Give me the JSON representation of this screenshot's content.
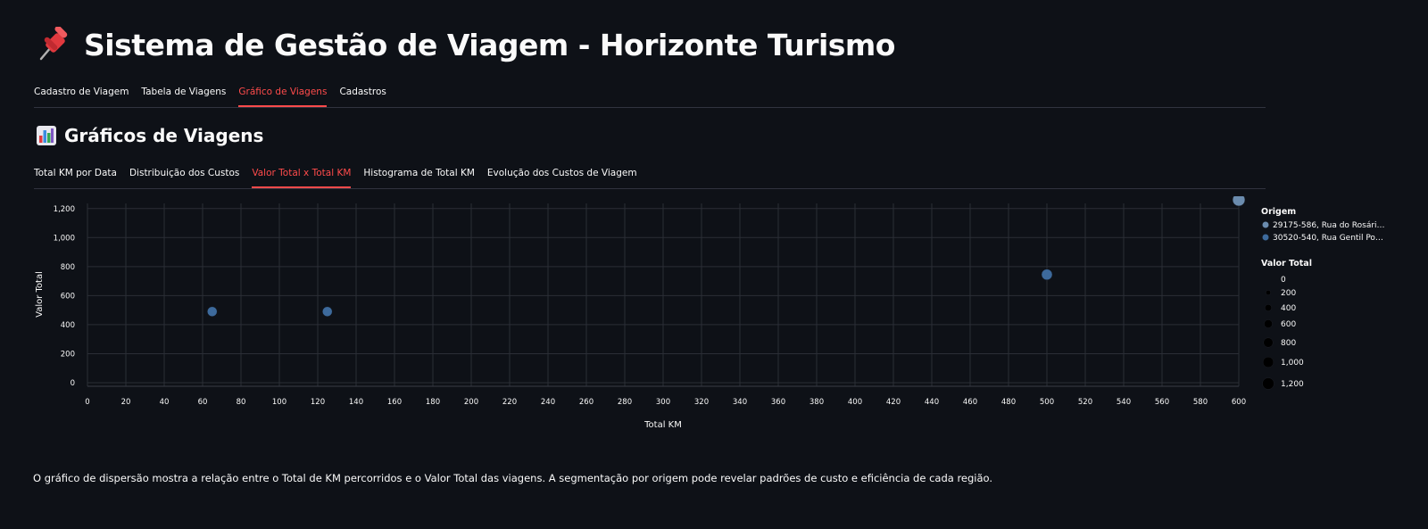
{
  "header": {
    "title_icon": "pushpin-icon",
    "title": "Sistema de Gestão de Viagem - Horizonte Turismo"
  },
  "main_tabs": [
    {
      "label": "Cadastro de Viagem",
      "active": false
    },
    {
      "label": "Tabela de Viagens",
      "active": false
    },
    {
      "label": "Gráfico de Viagens",
      "active": true
    },
    {
      "label": "Cadastros",
      "active": false
    }
  ],
  "section": {
    "icon": "bar-chart-icon",
    "title": "Gráficos de Viagens"
  },
  "chart_tabs": [
    {
      "label": "Total KM por Data",
      "active": false
    },
    {
      "label": "Distribuição dos Custos",
      "active": false
    },
    {
      "label": "Valor Total x Total KM",
      "active": true
    },
    {
      "label": "Histograma de Total KM",
      "active": false
    },
    {
      "label": "Evolução dos Custos de Viagem",
      "active": false
    }
  ],
  "chart_data": {
    "type": "scatter",
    "xlabel": "Total KM",
    "ylabel": "Valor Total",
    "xlim": [
      0,
      600
    ],
    "ylim": [
      0,
      1260
    ],
    "x_ticks": [
      0,
      20,
      40,
      60,
      80,
      100,
      120,
      140,
      160,
      180,
      200,
      220,
      240,
      260,
      280,
      300,
      320,
      340,
      360,
      380,
      400,
      420,
      440,
      460,
      480,
      500,
      520,
      540,
      560,
      580,
      600
    ],
    "y_ticks": [
      0,
      200,
      400,
      600,
      800,
      1000,
      1200
    ],
    "tick_format": [
      "0",
      "200",
      "400",
      "600",
      "800",
      "1,000",
      "1,200"
    ],
    "grid": true,
    "legend_placement": "right",
    "color_legend_title": "Origem",
    "series": [
      {
        "name": "29175-586, Rua do Rosári…",
        "color": "#6b8cae",
        "points": [
          {
            "x": 600,
            "y": 1260
          }
        ]
      },
      {
        "name": "30520-540, Rua Gentil Po…",
        "color": "#3d6a9c",
        "points": [
          {
            "x": 65,
            "y": 490
          },
          {
            "x": 125,
            "y": 490
          },
          {
            "x": 500,
            "y": 745
          }
        ]
      }
    ],
    "size_legend_title": "Valor Total",
    "size_legend": [
      "0",
      "200",
      "400",
      "600",
      "800",
      "1,000",
      "1,200"
    ],
    "size_legend_values": [
      0,
      200,
      400,
      600,
      800,
      1000,
      1200
    ]
  },
  "caption": "O gráfico de dispersão mostra a relação entre o Total de KM percorridos e o Valor Total das viagens. A segmentação por origem pode revelar padrões de custo e eficiência de cada região."
}
